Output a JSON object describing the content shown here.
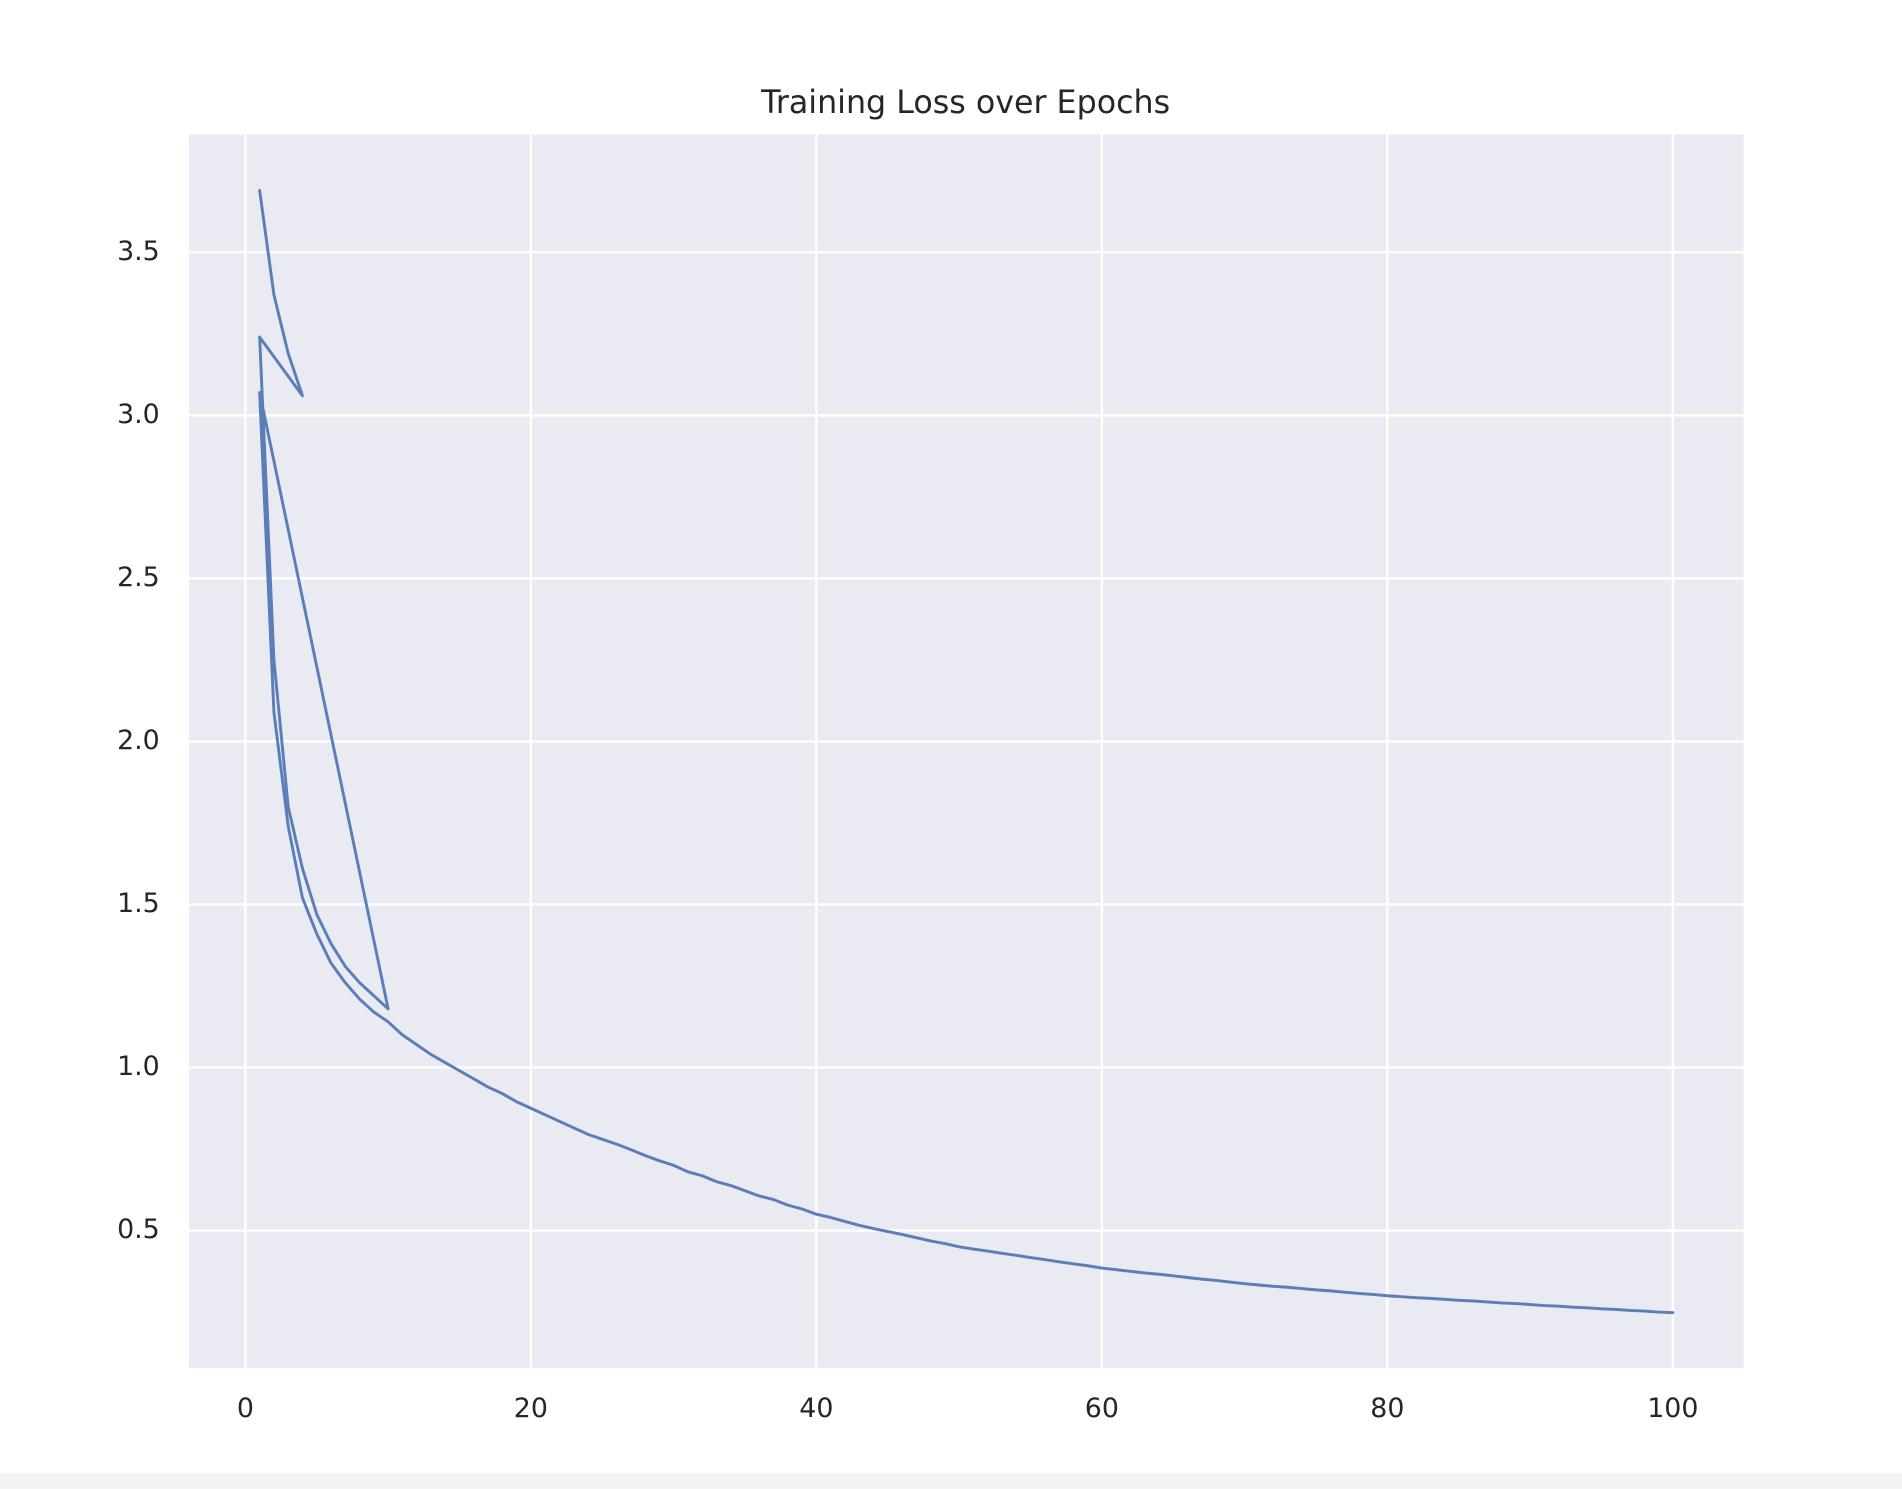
{
  "chart_data": {
    "type": "line",
    "title": "Training Loss over Epochs",
    "x": [
      1,
      2,
      3,
      4,
      1,
      2,
      3,
      4,
      5,
      6,
      7,
      8,
      9,
      10,
      1,
      2,
      3,
      4,
      5,
      6,
      7,
      8,
      9,
      10,
      11,
      12,
      13,
      14,
      15,
      16,
      17,
      18,
      19,
      20,
      21,
      22,
      23,
      24,
      25,
      26,
      27,
      28,
      29,
      30,
      31,
      32,
      33,
      34,
      35,
      36,
      37,
      38,
      39,
      40,
      41,
      42,
      43,
      44,
      45,
      46,
      47,
      48,
      49,
      50,
      51,
      52,
      53,
      54,
      55,
      56,
      57,
      58,
      59,
      60,
      61,
      62,
      63,
      64,
      65,
      66,
      67,
      68,
      69,
      70,
      71,
      72,
      73,
      74,
      75,
      76,
      77,
      78,
      79,
      80,
      81,
      82,
      83,
      84,
      85,
      86,
      87,
      88,
      89,
      90,
      91,
      92,
      93,
      94,
      95,
      96,
      97,
      98,
      99,
      100
    ],
    "values": [
      3.69,
      3.37,
      3.19,
      3.06,
      3.24,
      2.25,
      1.8,
      1.61,
      1.47,
      1.38,
      1.31,
      1.26,
      1.22,
      1.18,
      3.07,
      2.09,
      1.74,
      1.52,
      1.41,
      1.32,
      1.26,
      1.21,
      1.17,
      1.14,
      1.1,
      1.07,
      1.04,
      1.015,
      0.99,
      0.965,
      0.94,
      0.92,
      0.895,
      0.875,
      0.855,
      0.835,
      0.815,
      0.795,
      0.78,
      0.765,
      0.748,
      0.73,
      0.714,
      0.7,
      0.68,
      0.668,
      0.65,
      0.638,
      0.622,
      0.606,
      0.595,
      0.578,
      0.566,
      0.55,
      0.54,
      0.528,
      0.516,
      0.506,
      0.497,
      0.488,
      0.478,
      0.468,
      0.46,
      0.45,
      0.443,
      0.437,
      0.43,
      0.424,
      0.417,
      0.411,
      0.404,
      0.398,
      0.392,
      0.385,
      0.38,
      0.375,
      0.37,
      0.366,
      0.361,
      0.356,
      0.351,
      0.347,
      0.342,
      0.337,
      0.333,
      0.329,
      0.326,
      0.322,
      0.318,
      0.315,
      0.311,
      0.307,
      0.304,
      0.3,
      0.297,
      0.294,
      0.292,
      0.289,
      0.286,
      0.284,
      0.281,
      0.278,
      0.276,
      0.273,
      0.27,
      0.268,
      0.265,
      0.263,
      0.26,
      0.258,
      0.255,
      0.253,
      0.25,
      0.248
    ],
    "color": "#5b7db8",
    "xlim": [
      -3.95,
      104.95
    ],
    "xticks": [
      0,
      20,
      40,
      60,
      80,
      100
    ],
    "ylim": [
      0.078,
      3.862
    ],
    "yticks": [
      0.5,
      {
        "value": 1,
        "label": "1.0"
      },
      1.5,
      {
        "value": 2,
        "label": "2.0"
      },
      2.5,
      {
        "value": 3,
        "label": "3.0"
      },
      3.5
    ],
    "grid": true
  }
}
